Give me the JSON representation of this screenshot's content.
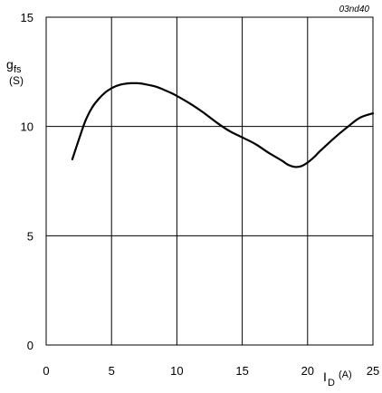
{
  "figure_id": "03nd40",
  "chart_data": {
    "type": "line",
    "ylabel_main": "g",
    "ylabel_sub": "fs",
    "ylabel_unit": "(S)",
    "xlabel_main": "I",
    "xlabel_sub": "D",
    "xlabel_unit": "(A)",
    "xlim": [
      0,
      25
    ],
    "ylim": [
      0,
      15
    ],
    "xticks": [
      0,
      5,
      10,
      15,
      20,
      25
    ],
    "yticks": [
      0,
      5,
      10,
      15
    ],
    "grid": true,
    "colors": {
      "line": "#000000",
      "grid": "#000000"
    },
    "series": [
      {
        "x": [
          2.0,
          2.5,
          3.0,
          3.5,
          4.0,
          4.5,
          5.0,
          5.5,
          6.0,
          6.5,
          7.0,
          7.5,
          8.0,
          8.5,
          9.0,
          9.5,
          10.0,
          11.0,
          12.0,
          13.0,
          14.0,
          15.0,
          16.0,
          17.0,
          18.0,
          18.5,
          19.0,
          19.5,
          20.0,
          20.5,
          21.0,
          22.0,
          23.0,
          24.0,
          25.0
        ],
        "y": [
          8.5,
          9.4,
          10.25,
          10.85,
          11.25,
          11.55,
          11.75,
          11.88,
          11.95,
          11.98,
          11.98,
          11.94,
          11.88,
          11.8,
          11.68,
          11.55,
          11.4,
          11.05,
          10.65,
          10.2,
          9.8,
          9.5,
          9.2,
          8.8,
          8.45,
          8.25,
          8.15,
          8.18,
          8.35,
          8.6,
          8.9,
          9.45,
          9.95,
          10.4,
          10.6
        ]
      }
    ]
  }
}
